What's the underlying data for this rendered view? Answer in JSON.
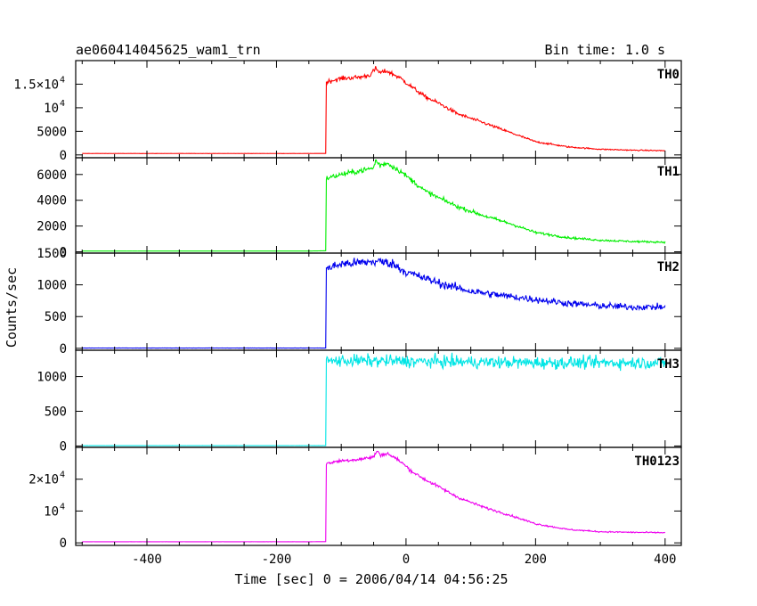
{
  "chart_data": {
    "type": "line",
    "title": "ae060414045625_wam1_trn",
    "subtitle": "Bin time: 1.0 s",
    "xlabel": "Time [sec] 0 = 2006/04/14 04:56:25",
    "ylabel": "Counts/sec",
    "xlim": [
      -510,
      425
    ],
    "x_ticks": [
      "-400",
      "-200",
      "0",
      "200",
      "400"
    ],
    "x_tick_values": [
      -400,
      -200,
      0,
      200,
      400
    ],
    "panels": [
      {
        "name": "TH0",
        "color": "#ff0000",
        "ylim": [
          -600,
          20000
        ],
        "y_ticks": [
          {
            "value": 0,
            "label": "0",
            "exp": ""
          },
          {
            "value": 5000,
            "label": "5000",
            "exp": ""
          },
          {
            "value": 10000,
            "label": "10",
            "exp": "4"
          },
          {
            "value": 15000,
            "label": "1.5×10",
            "exp": "4"
          }
        ],
        "x": [
          -500,
          -150,
          -124,
          -123,
          -100,
          -70,
          -55,
          -47,
          -40,
          -30,
          -10,
          10,
          30,
          50,
          80,
          120,
          160,
          200,
          250,
          300,
          350,
          400
        ],
        "y": [
          300,
          300,
          320,
          15500,
          16200,
          16500,
          17000,
          18300,
          17400,
          17800,
          16400,
          14300,
          12300,
          11000,
          8700,
          6800,
          4800,
          2800,
          1700,
          1200,
          1000,
          900
        ],
        "noise": 250
      },
      {
        "name": "TH1",
        "color": "#00ee00",
        "ylim": [
          -100,
          7300
        ],
        "y_ticks": [
          {
            "value": 0,
            "label": "0",
            "exp": ""
          },
          {
            "value": 2000,
            "label": "2000",
            "exp": ""
          },
          {
            "value": 4000,
            "label": "4000",
            "exp": ""
          },
          {
            "value": 6000,
            "label": "6000",
            "exp": ""
          }
        ],
        "x": [
          -500,
          -150,
          -124,
          -123,
          -100,
          -70,
          -50,
          -47,
          -40,
          -30,
          -10,
          10,
          30,
          50,
          80,
          120,
          160,
          200,
          250,
          300,
          350,
          400
        ],
        "y": [
          60,
          60,
          80,
          5700,
          6000,
          6300,
          6500,
          7100,
          6700,
          6900,
          6300,
          5500,
          4700,
          4200,
          3500,
          2800,
          2200,
          1500,
          1100,
          900,
          800,
          750
        ],
        "noise": 110
      },
      {
        "name": "TH2",
        "color": "#0000ee",
        "ylim": [
          -30,
          1500
        ],
        "y_ticks": [
          {
            "value": 0,
            "label": "0",
            "exp": ""
          },
          {
            "value": 500,
            "label": "500",
            "exp": ""
          },
          {
            "value": 1000,
            "label": "1000",
            "exp": ""
          },
          {
            "value": 1500,
            "label": "1500",
            "exp": ""
          }
        ],
        "x": [
          -500,
          -150,
          -124,
          -123,
          -100,
          -70,
          -40,
          -20,
          0,
          30,
          60,
          100,
          150,
          200,
          250,
          300,
          350,
          400
        ],
        "y": [
          5,
          5,
          5,
          1250,
          1330,
          1350,
          1370,
          1330,
          1200,
          1100,
          1000,
          900,
          830,
          770,
          710,
          670,
          650,
          650
        ],
        "noise": 38
      },
      {
        "name": "TH3",
        "color": "#00e5e5",
        "ylim": [
          -20,
          1380
        ],
        "y_ticks": [
          {
            "value": 0,
            "label": "0",
            "exp": ""
          },
          {
            "value": 500,
            "label": "500",
            "exp": ""
          },
          {
            "value": 1000,
            "label": "1000",
            "exp": ""
          }
        ],
        "x": [
          -500,
          -150,
          -124,
          -123,
          -100,
          0,
          100,
          200,
          300,
          400
        ],
        "y": [
          5,
          5,
          5,
          1220,
          1230,
          1220,
          1210,
          1200,
          1200,
          1200
        ],
        "noise": 45
      },
      {
        "name": "TH0123",
        "color": "#ee00ee",
        "ylim": [
          -800,
          30000
        ],
        "y_ticks": [
          {
            "value": 0,
            "label": "0",
            "exp": ""
          },
          {
            "value": 10000,
            "label": "10",
            "exp": "4"
          },
          {
            "value": 20000,
            "label": "2×10",
            "exp": "4"
          }
        ],
        "x": [
          -500,
          -150,
          -124,
          -123,
          -100,
          -70,
          -50,
          -45,
          -38,
          -30,
          -10,
          10,
          30,
          50,
          80,
          120,
          160,
          200,
          250,
          300,
          350,
          400
        ],
        "y": [
          350,
          350,
          380,
          25000,
          25800,
          26300,
          27000,
          28800,
          27500,
          28200,
          25800,
          22300,
          19800,
          17700,
          14300,
          11200,
          8700,
          6000,
          4200,
          3500,
          3300,
          3200
        ],
        "noise": 300
      }
    ]
  }
}
